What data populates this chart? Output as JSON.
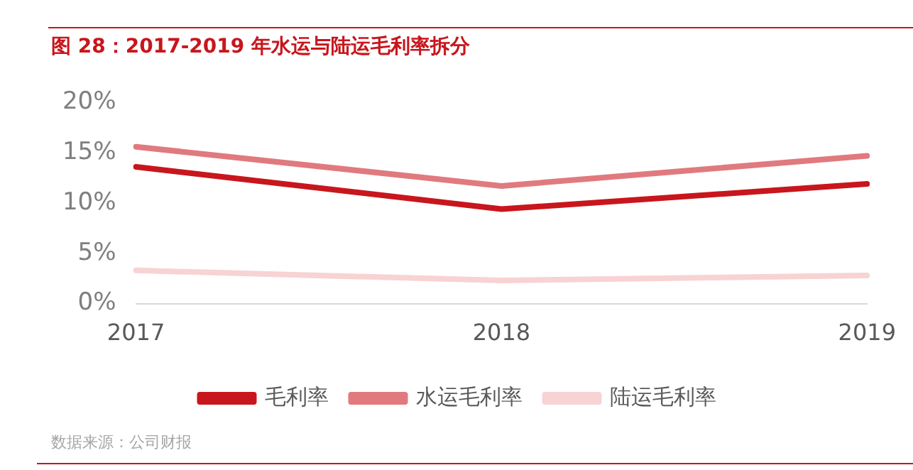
{
  "chart_data": {
    "type": "line",
    "title": "图 28：2017-2019 年水运与陆运毛利率拆分",
    "categories": [
      "2017",
      "2018",
      "2019"
    ],
    "series": [
      {
        "name": "毛利率",
        "color": "#c8161d",
        "values": [
          13.6,
          9.4,
          11.9
        ]
      },
      {
        "name": "水运毛利率",
        "color": "#e07a7e",
        "values": [
          15.6,
          11.7,
          14.7
        ]
      },
      {
        "name": "陆运毛利率",
        "color": "#f8d3d4",
        "values": [
          3.3,
          2.3,
          2.8
        ]
      }
    ],
    "ylim": [
      0,
      20
    ],
    "yticks": [
      {
        "value": 0,
        "label": "0%"
      },
      {
        "value": 5,
        "label": "5%"
      },
      {
        "value": 10,
        "label": "10%"
      },
      {
        "value": 15,
        "label": "15%"
      },
      {
        "value": 20,
        "label": "20%"
      }
    ],
    "grid": false,
    "legend": "bottom",
    "marker": "none",
    "line_style": "solid",
    "annotations": [
      "数据来源：公司财报"
    ]
  }
}
